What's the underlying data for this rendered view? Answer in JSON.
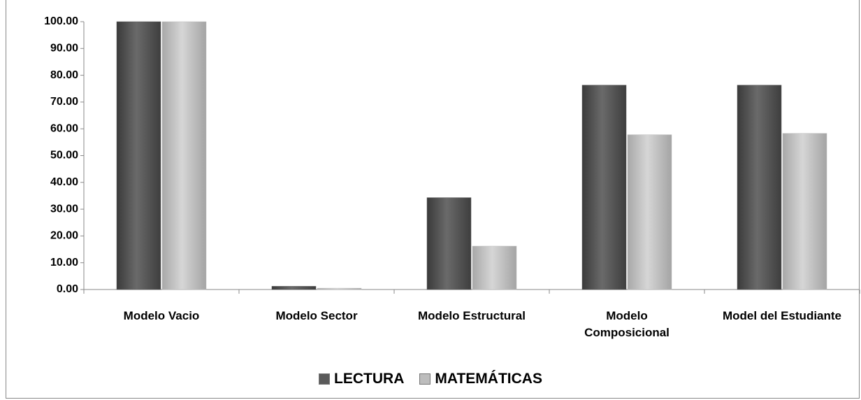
{
  "chart_data": {
    "type": "bar",
    "categories": [
      "Modelo Vacio",
      "Modelo Sector",
      "Modelo Estructural",
      "Modelo\nComposicional",
      "Model del Estudiante"
    ],
    "series": [
      {
        "name": "LECTURA",
        "color": "#5a5a5a",
        "values": [
          100,
          1.2,
          34.3,
          76.3,
          76.3
        ]
      },
      {
        "name": "MATEMÁTICAS",
        "color": "#bdbdbd",
        "values": [
          100,
          0.5,
          16.2,
          57.8,
          58.3
        ]
      }
    ],
    "ylim": [
      0,
      100
    ],
    "yticks": [
      {
        "value": 0,
        "label": "0.00"
      },
      {
        "value": 10,
        "label": "10.00"
      },
      {
        "value": 20,
        "label": "20.00"
      },
      {
        "value": 30,
        "label": "30.00"
      },
      {
        "value": 40,
        "label": "40.00"
      },
      {
        "value": 50,
        "label": "50.00"
      },
      {
        "value": 60,
        "label": "60.00"
      },
      {
        "value": 70,
        "label": "70.00"
      },
      {
        "value": 80,
        "label": "80.00"
      },
      {
        "value": 90,
        "label": "90.00"
      },
      {
        "value": 100,
        "label": "100.00"
      }
    ],
    "grid": false,
    "legend": "bottom"
  }
}
